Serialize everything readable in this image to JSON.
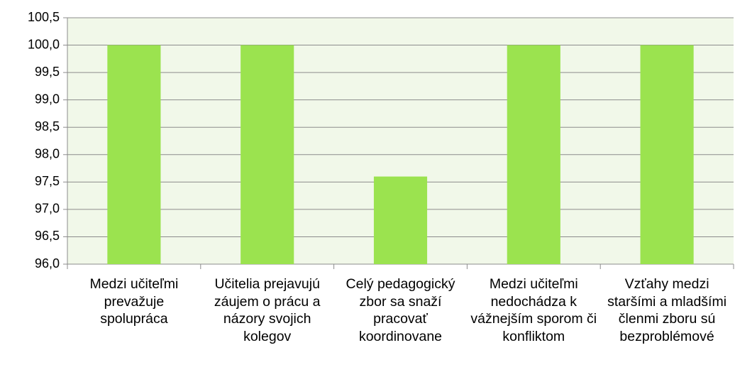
{
  "chart_data": {
    "type": "bar",
    "categories": [
      "Medzi učiteľmi prevažuje spolupráca",
      "Učitelia prejavujú záujem o prácu a názory svojich kolegov",
      "Celý pedagogický zbor sa snaží pracovať koordinovane",
      "Medzi učiteľmi nedochádza k vážnejším sporom či konfliktom",
      "Vzťahy medzi staršími a mladšími členmi zboru sú bezproblémové"
    ],
    "values": [
      100,
      100,
      97.6,
      100,
      100
    ],
    "color": "#9be34f",
    "ylim": [
      96,
      100.5
    ],
    "yticks": [
      {
        "value": 96,
        "label": "96,0"
      },
      {
        "value": 96.5,
        "label": "96,5"
      },
      {
        "value": 97,
        "label": "97,0"
      },
      {
        "value": 97.5,
        "label": "97,5"
      },
      {
        "value": 98,
        "label": "98,0"
      },
      {
        "value": 98.5,
        "label": "98,5"
      },
      {
        "value": 99,
        "label": "99,0"
      },
      {
        "value": 99.5,
        "label": "99,5"
      },
      {
        "value": 100,
        "label": "100,0"
      },
      {
        "value": 100.5,
        "label": "100,5"
      }
    ],
    "grid": true
  }
}
